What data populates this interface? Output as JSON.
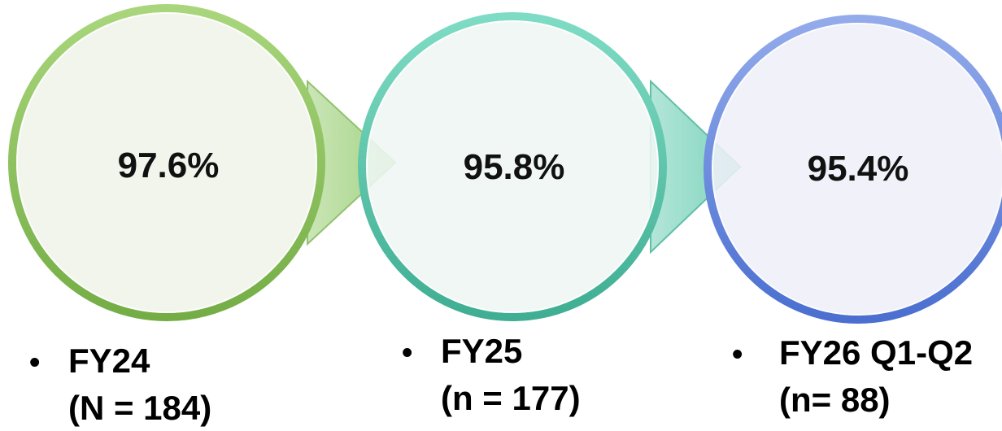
{
  "stages": [
    {
      "value": "97.6%",
      "label": "FY24",
      "count": "(N = 184)",
      "fill": "#f2f5ec",
      "ring": "#8cc25c",
      "ring_dark": "#6fa842",
      "arrow": "#8ec966"
    },
    {
      "value": "95.8%",
      "label": "FY25",
      "count": "(n = 177)",
      "fill": "#eef6f4",
      "ring": "#57c9ad",
      "ring_dark": "#3fae93",
      "arrow": "#5dc9ac"
    },
    {
      "value": "95.4%",
      "label": "FY26 Q1-Q2",
      "count": "(n= 88)",
      "fill": "#eeeff8",
      "ring": "#6f8fe0",
      "ring_dark": "#4a6fd0",
      "arrow": null
    }
  ],
  "bullet_glyph": "•"
}
